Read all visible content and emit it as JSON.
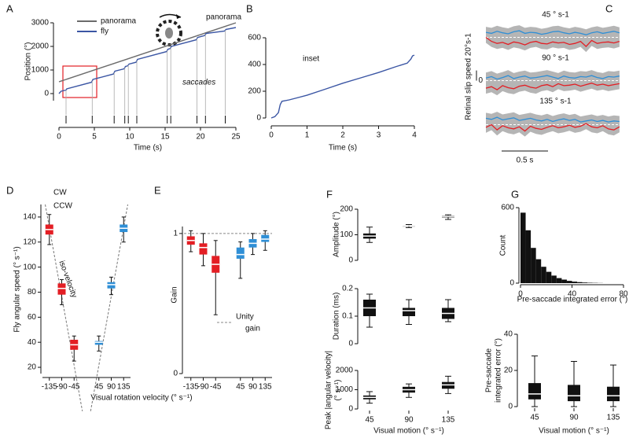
{
  "chart_data": [
    {
      "type": "line",
      "label": "A",
      "ylabel": "Position (°)",
      "xlabel": "Time (s)",
      "annotations": [
        "panorama",
        "saccades"
      ],
      "x": [
        0,
        0.3,
        1,
        1.1,
        4.6,
        4.8,
        7.7,
        7.9,
        9.2,
        9.4,
        9.7,
        9.9,
        10.9,
        11.1,
        15.2,
        15.4,
        15.7,
        15.9,
        19.4,
        19.6,
        20.6,
        20.8,
        23.4,
        23.6,
        25
      ],
      "series": [
        {
          "name": "panorama",
          "color": "#6b6b6b",
          "values": [
            500,
            530,
            600,
            610,
            960,
            980,
            1270,
            1290,
            1420,
            1440,
            1470,
            1490,
            1590,
            1610,
            2020,
            2040,
            2070,
            2090,
            2440,
            2460,
            2560,
            2580,
            2840,
            2860,
            3000
          ]
        },
        {
          "name": "fly",
          "color": "#3b56a4",
          "values": [
            0,
            100,
            150,
            200,
            480,
            600,
            830,
            950,
            1050,
            1150,
            1175,
            1250,
            1330,
            1450,
            1780,
            1880,
            1905,
            2000,
            2280,
            2380,
            2460,
            2550,
            2650,
            2720,
            2800
          ]
        }
      ],
      "saccade_times": [
        1,
        4.7,
        7.8,
        9.3,
        9.8,
        11,
        15.3,
        15.8,
        19.5,
        20.7,
        23.5
      ],
      "xlim": [
        0,
        25
      ],
      "xticks": [
        0,
        5,
        10,
        15,
        20,
        25
      ],
      "ylim": [
        -300,
        3000
      ],
      "yticks": [
        0,
        1000,
        2000,
        3000
      ],
      "legend": "upper left"
    },
    {
      "type": "line",
      "label": "B",
      "xlabel": "Time (s)",
      "annotations": [
        "inset"
      ],
      "annotation_color": "#e31e24",
      "x": [
        0,
        0.1,
        0.2,
        0.25,
        0.3,
        0.5,
        1,
        1.5,
        2,
        2.5,
        3,
        3.5,
        3.8,
        3.9,
        3.95,
        4
      ],
      "series": [
        {
          "color": "#3b56a4",
          "values": [
            0,
            10,
            40,
            100,
            125,
            135,
            170,
            215,
            260,
            300,
            340,
            385,
            410,
            440,
            465,
            470
          ]
        }
      ],
      "xlim": [
        0,
        4
      ],
      "xticks": [
        0,
        1,
        2,
        3,
        4
      ],
      "ylim": [
        0,
        600
      ],
      "yticks": [
        0,
        200,
        400,
        600
      ]
    },
    {
      "type": "traces",
      "label": "C",
      "x": [
        0,
        0.06,
        0.12,
        0.18,
        0.24,
        0.3,
        0.36,
        0.42,
        0.48,
        0.54,
        0.6,
        0.66,
        0.72,
        0.78,
        0.84,
        0.9,
        0.96,
        1.02,
        1.08,
        1.14,
        1.2,
        1.26,
        1.32,
        1.38,
        1.44
      ],
      "xlim": [
        0,
        1.5
      ],
      "ylim": [
        -35,
        35
      ],
      "yticks": [
        0
      ],
      "scalebar_y": {
        "value": 20,
        "label": "Retinal slip speed 20°s-1"
      },
      "scalebar_x": {
        "value": 0.5,
        "label": "0.5 s"
      },
      "subplots": [
        {
          "title": "45 ° s-1",
          "series": [
            {
              "color": "#2f8fd6",
              "values": [
                10,
                8,
                12,
                9,
                7,
                11,
                13,
                8,
                10,
                9,
                6,
                8,
                11,
                12,
                9,
                7,
                10,
                8,
                5,
                9,
                11,
                8,
                10,
                12,
                9
              ]
            },
            {
              "color": "#e31e24",
              "values": [
                0,
                -8,
                -12,
                -10,
                -14,
                -9,
                -11,
                -15,
                -10,
                -8,
                -12,
                -13,
                -9,
                -11,
                -10,
                -14,
                -12,
                -8,
                -18,
                -6,
                -12,
                -10,
                -9,
                -11,
                -8
              ]
            }
          ]
        },
        {
          "title": "90 ° s-1",
          "series": [
            {
              "color": "#2f8fd6",
              "values": [
                5,
                8,
                3,
                6,
                10,
                4,
                7,
                9,
                5,
                6,
                8,
                10,
                7,
                4,
                9,
                6,
                5,
                8,
                7,
                10,
                6,
                4,
                8,
                7,
                9
              ]
            },
            {
              "color": "#e31e24",
              "values": [
                -15,
                -12,
                -18,
                -10,
                -14,
                -16,
                -11,
                -9,
                -13,
                -15,
                -10,
                -8,
                -12,
                -6,
                -10,
                -9,
                -7,
                -11,
                -8,
                -5,
                -9,
                -7,
                -10,
                -8,
                -6
              ]
            }
          ]
        },
        {
          "title": "135 ° s-1",
          "series": [
            {
              "color": "#2f8fd6",
              "values": [
                12,
                10,
                14,
                9,
                11,
                13,
                8,
                10,
                12,
                9,
                7,
                10,
                6,
                9,
                11,
                8,
                10,
                5,
                7,
                9,
                6,
                8,
                5,
                7,
                6
              ]
            },
            {
              "color": "#e31e24",
              "values": [
                -5,
                0,
                -10,
                -2,
                -6,
                -8,
                -4,
                -12,
                -3,
                -7,
                -9,
                -5,
                -2,
                -6,
                -4,
                -1,
                -5,
                -3,
                2,
                -4,
                -6,
                -2,
                -8,
                -10,
                -4
              ]
            }
          ]
        }
      ]
    },
    {
      "type": "box",
      "label": "D",
      "ylabel": "Fly angular speed (° s⁻¹)",
      "xlabel": "Visual rotation velocity (° s⁻¹)",
      "series": [
        {
          "name": "CW",
          "color": "#2f8fd6",
          "x": [
            45,
            90,
            135
          ],
          "median": [
            40,
            86,
            131
          ],
          "q1": [
            38,
            83,
            128
          ],
          "q3": [
            41,
            88,
            134
          ],
          "whisker_low": [
            33,
            78,
            120
          ],
          "whisker_high": [
            45,
            92,
            140
          ]
        },
        {
          "name": "CCW",
          "color": "#e31e24",
          "x": [
            -135,
            -90,
            -45
          ],
          "median": [
            130,
            83,
            38
          ],
          "q1": [
            126,
            78,
            34
          ],
          "q3": [
            134,
            87,
            42
          ],
          "whisker_low": [
            118,
            70,
            25
          ],
          "whisker_high": [
            142,
            90,
            45
          ]
        }
      ],
      "diag_line": true,
      "diag_label": "iso-velocity",
      "xlim": [
        -160,
        160
      ],
      "xticks": [
        -135,
        -90,
        -45,
        45,
        90,
        135
      ],
      "ylim": [
        15,
        150
      ],
      "yticks": [
        20,
        40,
        60,
        80,
        100,
        120,
        140
      ]
    },
    {
      "type": "box",
      "label": "E",
      "ylabel": "Gain",
      "series": [
        {
          "color": "#2f8fd6",
          "x": [
            45,
            90,
            135
          ],
          "median": [
            0.85,
            0.93,
            0.96
          ],
          "q1": [
            0.82,
            0.9,
            0.94
          ],
          "q3": [
            0.9,
            0.96,
            0.99
          ],
          "whisker_low": [
            0.68,
            0.85,
            0.88
          ],
          "whisker_high": [
            0.94,
            1,
            1.02
          ]
        },
        {
          "color": "#e31e24",
          "x": [
            -135,
            -90,
            -45
          ],
          "median": [
            0.95,
            0.9,
            0.78
          ],
          "q1": [
            0.92,
            0.85,
            0.72
          ],
          "q3": [
            0.98,
            0.93,
            0.84
          ],
          "whisker_low": [
            0.87,
            0.77,
            0.42
          ],
          "whisker_high": [
            1.02,
            1,
            0.95
          ]
        }
      ],
      "hline": 1,
      "hline_label": [
        "Unity",
        "gain"
      ],
      "xlim": [
        -160,
        160
      ],
      "xticks": [
        -135,
        -90,
        -45,
        45,
        90,
        135
      ],
      "ylim": [
        0,
        1.05
      ],
      "yticks": [
        0,
        1
      ]
    },
    {
      "type": "box",
      "label": "F",
      "ylabel": "Amplitude (°)",
      "color": "#111111",
      "median": [
        95,
        135,
        172
      ],
      "q1": [
        85,
        132,
        168
      ],
      "q3": [
        105,
        137,
        175
      ],
      "whisker_low": [
        70,
        128,
        160
      ],
      "whisker_high": [
        130,
        140,
        178
      ],
      "ylim": [
        0,
        200
      ],
      "yticks": [
        0,
        100,
        200
      ]
    },
    {
      "type": "box",
      "ylabel": "Duration (ms)",
      "color": "#111111",
      "median": [
        0.13,
        0.12,
        0.11
      ],
      "q1": [
        0.1,
        0.1,
        0.09
      ],
      "q3": [
        0.16,
        0.13,
        0.13
      ],
      "whisker_low": [
        0.06,
        0.07,
        0.08
      ],
      "whisker_high": [
        0.18,
        0.16,
        0.16
      ],
      "ylim": [
        0,
        0.2
      ],
      "yticks": [
        0,
        0.1,
        0.2
      ]
    },
    {
      "type": "box",
      "ylabel": [
        "Peak |angular velocity|",
        "(° s⁻¹)"
      ],
      "xlabel": "Visual motion (° s⁻¹)",
      "color": "#111111",
      "categories": [
        "45",
        "90",
        "135"
      ],
      "median": [
        600,
        1000,
        1250
      ],
      "q1": [
        500,
        850,
        1050
      ],
      "q3": [
        700,
        1150,
        1400
      ],
      "whisker_low": [
        300,
        600,
        800
      ],
      "whisker_high": [
        900,
        1300,
        1700
      ],
      "ylim": [
        0,
        2000
      ],
      "yticks": [
        0,
        1000,
        2000
      ]
    },
    {
      "type": "histogram",
      "label": "G",
      "ylabel": "Count",
      "xlabel": "Pre-saccade integrated error (°)",
      "color": "#111111",
      "bins": [
        0,
        4,
        8,
        12,
        16,
        20,
        24,
        28,
        32,
        36,
        40,
        44,
        48,
        52,
        56,
        60,
        64
      ],
      "values": [
        560,
        420,
        280,
        190,
        130,
        90,
        60,
        40,
        28,
        18,
        12,
        8,
        5,
        3,
        2,
        1
      ],
      "xlim": [
        0,
        80
      ],
      "xticks": [
        0,
        40,
        80
      ],
      "ylim": [
        0,
        600
      ],
      "yticks": [
        0,
        600
      ]
    },
    {
      "type": "box",
      "ylabel": [
        "Pre-saccade",
        "integrated error (°)"
      ],
      "xlabel": "Visual motion (° s⁻¹)",
      "color": "#111111",
      "categories": [
        "45",
        "90",
        "135"
      ],
      "median": [
        7,
        6,
        6
      ],
      "q1": [
        4,
        3,
        3
      ],
      "q3": [
        13,
        12,
        11
      ],
      "whisker_low": [
        0,
        0,
        0
      ],
      "whisker_high": [
        28,
        25,
        23
      ],
      "ylim": [
        0,
        40
      ],
      "yticks": [
        0,
        20,
        40
      ]
    }
  ]
}
